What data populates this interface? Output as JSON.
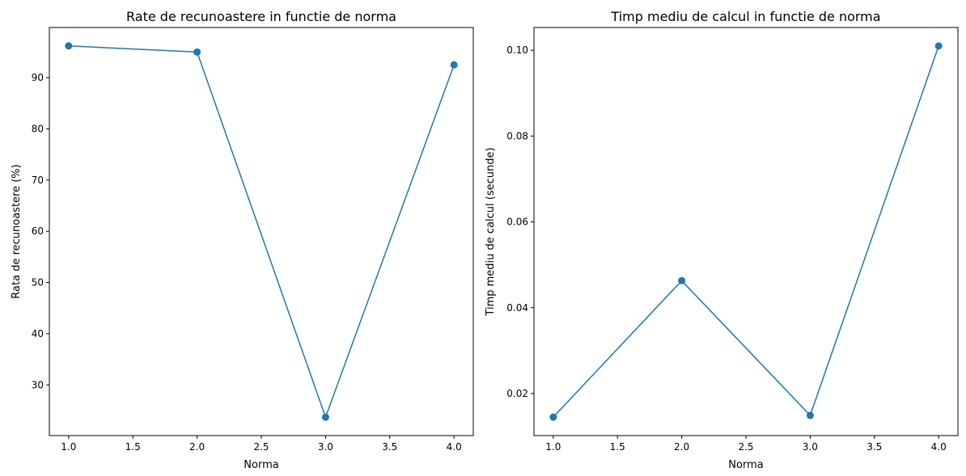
{
  "chart_data": [
    {
      "type": "line",
      "title": "Rate de recunoastere in functie de norma",
      "xlabel": "Norma",
      "ylabel": "Rata de recunoastere (%)",
      "x": [
        1.0,
        2.0,
        3.0,
        4.0
      ],
      "series": [
        {
          "values": [
            96.2,
            95.0,
            23.7,
            92.5
          ],
          "color": "#1f77b4",
          "marker": "circle"
        }
      ],
      "xlim": [
        0.85,
        4.15
      ],
      "ylim": [
        20.1,
        99.8
      ],
      "xticks": [
        1.0,
        1.5,
        2.0,
        2.5,
        3.0,
        3.5,
        4.0
      ],
      "xtick_labels": [
        "1.0",
        "1.5",
        "2.0",
        "2.5",
        "3.0",
        "3.5",
        "4.0"
      ],
      "yticks": [
        30,
        40,
        50,
        60,
        70,
        80,
        90
      ],
      "ytick_labels": [
        "30",
        "40",
        "50",
        "60",
        "70",
        "80",
        "90"
      ],
      "grid": false
    },
    {
      "type": "line",
      "title": "Timp mediu de calcul in functie de norma",
      "xlabel": "Norma",
      "ylabel": "Timp mediu de calcul (secunde)",
      "x": [
        1.0,
        2.0,
        3.0,
        4.0
      ],
      "series": [
        {
          "values": [
            0.0145,
            0.0463,
            0.0149,
            0.101
          ],
          "color": "#1f77b4",
          "marker": "circle"
        }
      ],
      "xlim": [
        0.85,
        4.15
      ],
      "ylim": [
        0.0102,
        0.1053
      ],
      "xticks": [
        1.0,
        1.5,
        2.0,
        2.5,
        3.0,
        3.5,
        4.0
      ],
      "xtick_labels": [
        "1.0",
        "1.5",
        "2.0",
        "2.5",
        "3.0",
        "3.5",
        "4.0"
      ],
      "yticks": [
        0.02,
        0.04,
        0.06,
        0.08,
        0.1
      ],
      "ytick_labels": [
        "0.02",
        "0.04",
        "0.06",
        "0.08",
        "0.10"
      ],
      "grid": false
    }
  ]
}
